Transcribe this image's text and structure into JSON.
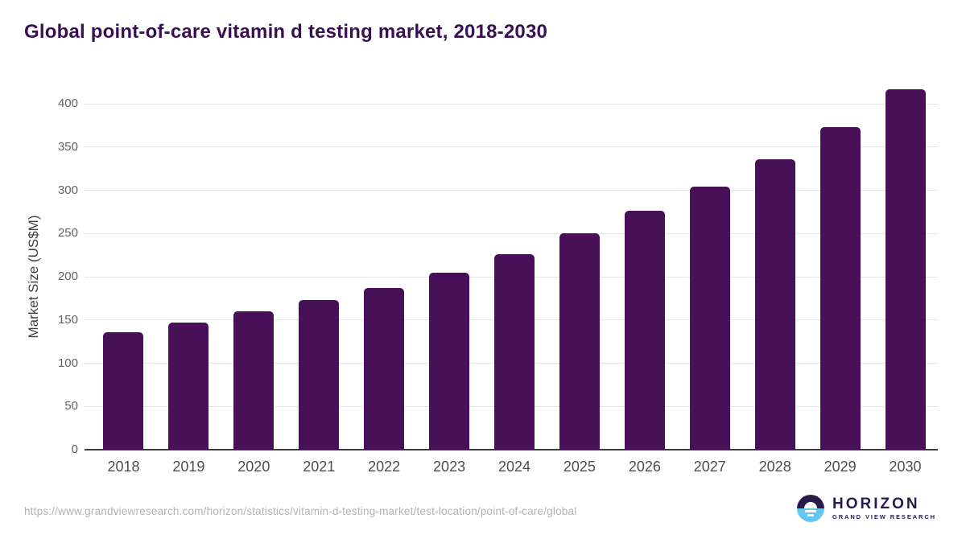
{
  "header": {
    "title": "Global point-of-care vitamin d testing market, 2018-2030"
  },
  "chart_data": {
    "type": "bar",
    "title": "Global point-of-care vitamin d testing market, 2018-2030",
    "categories": [
      "2018",
      "2019",
      "2020",
      "2021",
      "2022",
      "2023",
      "2024",
      "2025",
      "2026",
      "2027",
      "2028",
      "2029",
      "2030"
    ],
    "values": [
      136,
      147,
      160,
      173,
      187,
      205,
      226,
      250,
      276,
      304,
      336,
      373,
      417
    ],
    "xlabel": "",
    "ylabel": "Market Size (US$M)",
    "ylim": [
      0,
      400
    ],
    "yticks": [
      0,
      50,
      100,
      150,
      200,
      250,
      300,
      350,
      400
    ],
    "grid": "horizontal",
    "legend": "none",
    "bar_color": "#481057",
    "axis_color": "#3c3c3c",
    "gridline_color": "#e6e6e6",
    "tick_label_color": "#4d4d4d",
    "title_color": "#3A1053"
  },
  "footer": {
    "source_url": "https://www.grandviewresearch.com/horizon/statistics/vitamin-d-testing-market/test-location/point-of-care/global",
    "logo": {
      "title": "HORIZON",
      "subtitle": "GRAND VIEW RESEARCH",
      "icon": "sunrise-horizon-icon",
      "navy_color": "#2B1B4D",
      "blue_color": "#64C7F0"
    }
  }
}
